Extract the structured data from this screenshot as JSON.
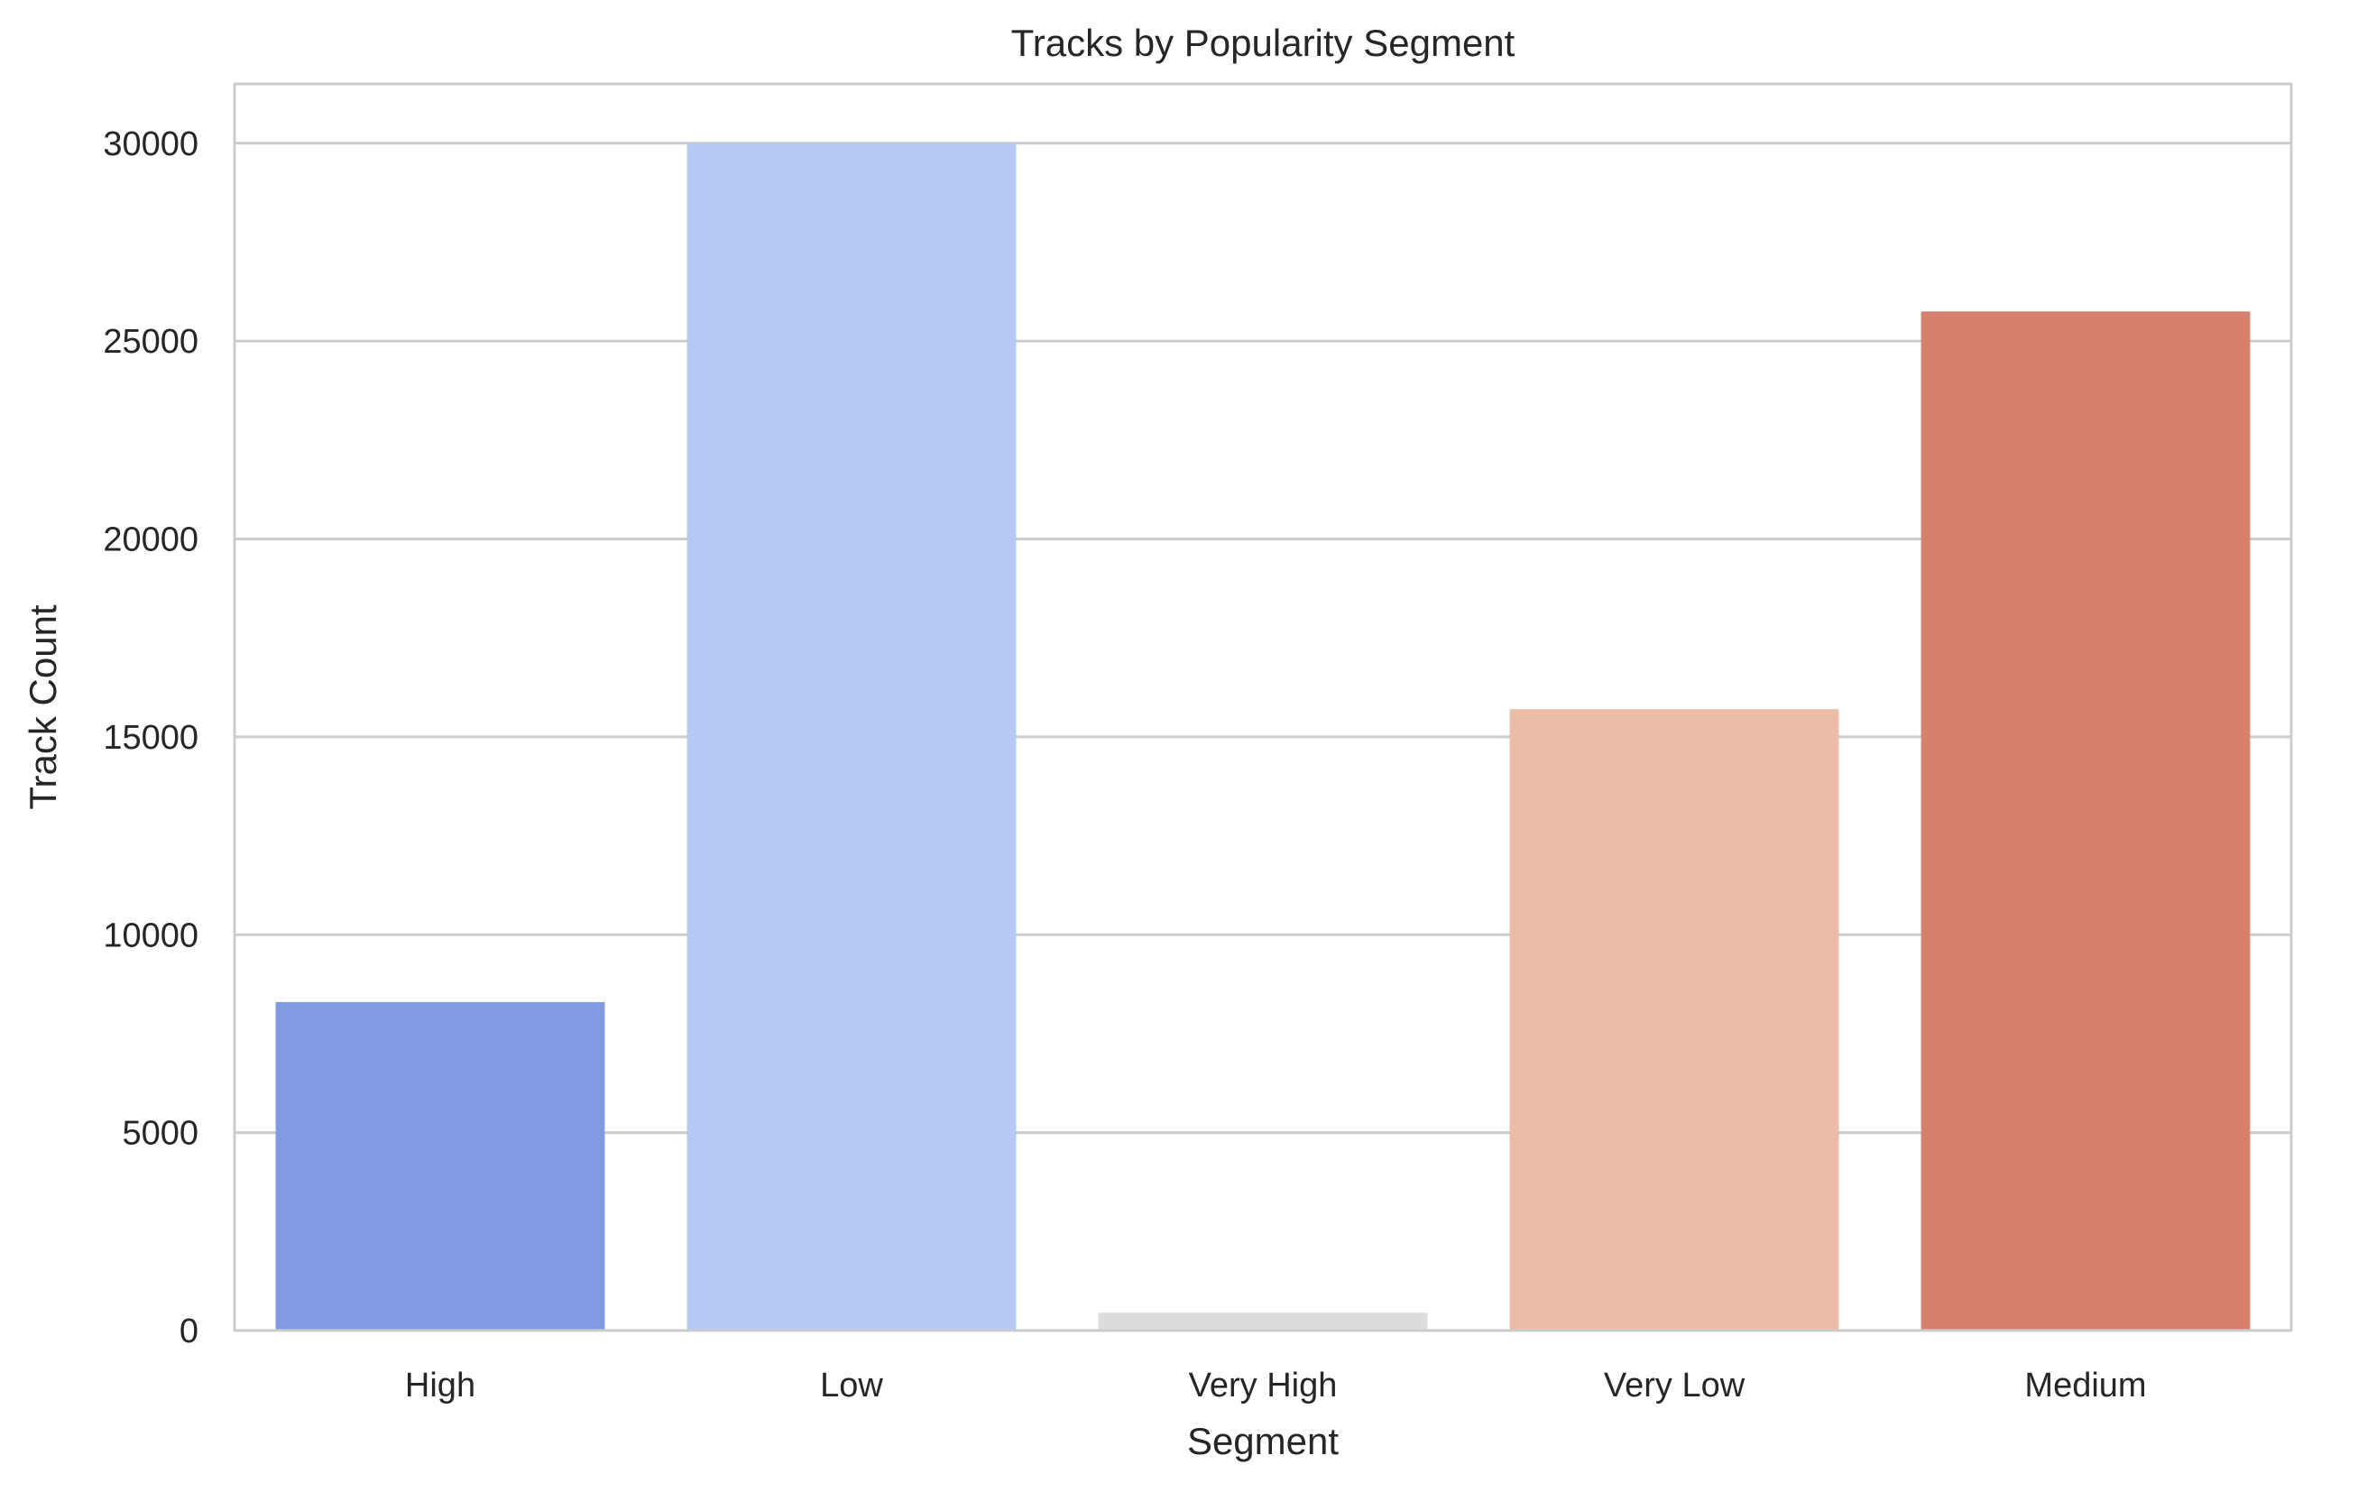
{
  "chart_data": {
    "type": "bar",
    "title": "Tracks by Popularity Segment",
    "xlabel": "Segment",
    "ylabel": "Track Count",
    "categories": [
      "High",
      "Low",
      "Very High",
      "Very Low",
      "Medium"
    ],
    "values": [
      8300,
      30000,
      450,
      15700,
      25750
    ],
    "colors": [
      "#819bE2",
      "#b5c9f3",
      "#dddcdc",
      "#ebbca6",
      "#d6806d"
    ],
    "ylim": [
      0,
      31500
    ],
    "yticks": [
      0,
      5000,
      10000,
      15000,
      20000,
      25000,
      30000
    ],
    "ytick_labels": [
      "0",
      "5000",
      "10000",
      "15000",
      "20000",
      "25000",
      "30000"
    ],
    "grid": true,
    "grid_color": "#cccccc"
  }
}
